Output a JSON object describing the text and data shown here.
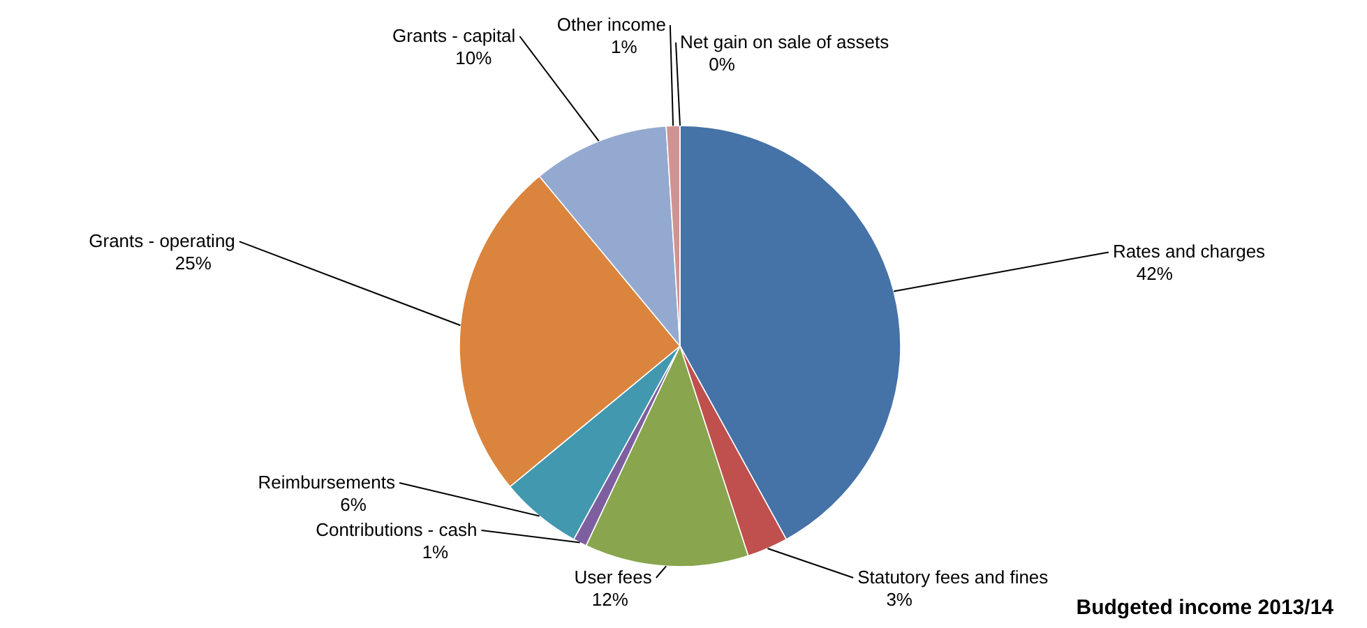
{
  "chart_data": {
    "type": "pie",
    "title": "Budgeted income 2013/14",
    "categories": [
      "Rates and charges",
      "Statutory fees and fines",
      "User fees",
      "Contributions - cash",
      "Reimbursements",
      "Grants - operating",
      "Grants - capital",
      "Other income",
      "Net gain on sale of assets"
    ],
    "values": [
      42,
      3,
      12,
      1,
      6,
      25,
      10,
      1,
      0
    ],
    "value_labels": [
      "42%",
      "3%",
      "12%",
      "1%",
      "6%",
      "25%",
      "10%",
      "1%",
      "0%"
    ],
    "colors": [
      "#4572a7",
      "#c0504d",
      "#89a54e",
      "#7d5fa0",
      "#4198af",
      "#db843d",
      "#93a9cf",
      "#d19392",
      "#b9cd96"
    ]
  }
}
